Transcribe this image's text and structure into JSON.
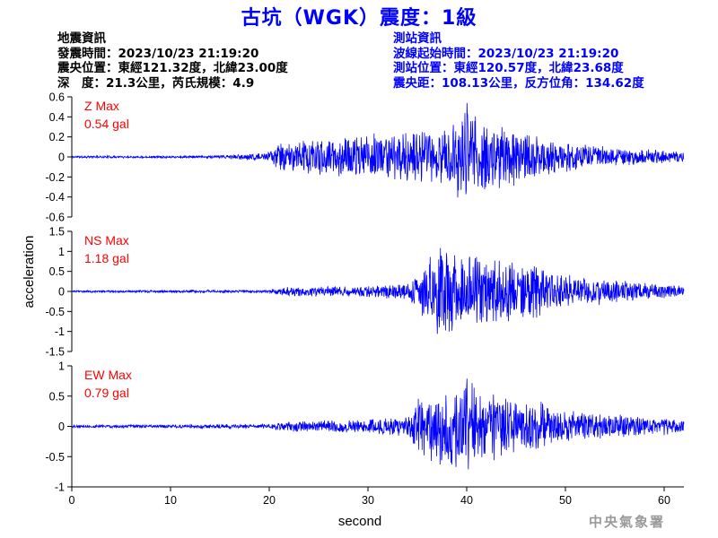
{
  "title": "古坑（WGK）震度：1級",
  "earthquake_info": {
    "heading": "地震資訊",
    "origin_time": "發震時間：2023/10/23 21:19:20",
    "epicenter": "震央位置：東經121.32度，北緯23.00度",
    "depth_magnitude": "深　度：21.3公里，芮氏規模：4.9"
  },
  "station_info": {
    "heading": "測站資訊",
    "wave_start_time": "波線起始時間：2023/10/23 21:19:20",
    "station_location": "測站位置：東經120.57度，北緯23.68度",
    "distance_azimuth": "震央距：108.13公里，反方位角：134.62度"
  },
  "credit": "中央氣象署",
  "colors": {
    "title": "#0000ff",
    "trace": "#0000ff",
    "max_label": "#ff0000",
    "station_text": "#0000ff"
  },
  "chart_data": {
    "type": "line",
    "xlabel": "second",
    "ylabel": "acceleration",
    "xlim": [
      0,
      62
    ],
    "x_ticks": [
      0,
      10,
      20,
      30,
      40,
      50,
      60
    ],
    "grid": false,
    "panels": [
      {
        "component": "Z",
        "max_label": "Z Max",
        "max_value": "0.54 gal",
        "ylim": [
          -0.6,
          0.6
        ],
        "y_ticks": [
          -0.6,
          -0.4,
          -0.2,
          0,
          0.2,
          0.4,
          0.6
        ],
        "y_tick_labels": [
          "-0.6",
          "-0.4",
          "-0.2",
          "0",
          "0.2",
          "0.4",
          "0.6"
        ],
        "envelope": [
          [
            0,
            0.012
          ],
          [
            14,
            0.015
          ],
          [
            17,
            0.03
          ],
          [
            20,
            0.05
          ],
          [
            21,
            0.15
          ],
          [
            26,
            0.2
          ],
          [
            30,
            0.24
          ],
          [
            34,
            0.26
          ],
          [
            36,
            0.3
          ],
          [
            38,
            0.35
          ],
          [
            40,
            0.54
          ],
          [
            42,
            0.38
          ],
          [
            46,
            0.28
          ],
          [
            50,
            0.16
          ],
          [
            55,
            0.1
          ],
          [
            62,
            0.06
          ]
        ],
        "seed": 11
      },
      {
        "component": "NS",
        "max_label": "NS Max",
        "max_value": "1.18 gal",
        "ylim": [
          -1.5,
          1.5
        ],
        "y_ticks": [
          -1.5,
          -1,
          -0.5,
          0,
          0.5,
          1,
          1.5
        ],
        "y_tick_labels": [
          "-1.5",
          "-1",
          "-0.5",
          "0",
          "0.5",
          "1",
          "1.5"
        ],
        "envelope": [
          [
            0,
            0.03
          ],
          [
            20,
            0.04
          ],
          [
            21,
            0.12
          ],
          [
            30,
            0.15
          ],
          [
            34,
            0.22
          ],
          [
            35,
            0.5
          ],
          [
            37,
            1.18
          ],
          [
            40,
            1.0
          ],
          [
            44,
            0.9
          ],
          [
            47,
            0.75
          ],
          [
            50,
            0.45
          ],
          [
            55,
            0.3
          ],
          [
            62,
            0.15
          ]
        ],
        "seed": 23
      },
      {
        "component": "EW",
        "max_label": "EW Max",
        "max_value": "0.79 gal",
        "ylim": [
          -1,
          1
        ],
        "y_ticks": [
          -1,
          -0.5,
          0,
          0.5,
          1
        ],
        "y_tick_labels": [
          "-1",
          "-0.5",
          "0",
          "0.5",
          "1"
        ],
        "envelope": [
          [
            0,
            0.025
          ],
          [
            20,
            0.04
          ],
          [
            21,
            0.1
          ],
          [
            30,
            0.12
          ],
          [
            34,
            0.18
          ],
          [
            35,
            0.5
          ],
          [
            37,
            0.7
          ],
          [
            40,
            0.79
          ],
          [
            43,
            0.6
          ],
          [
            46,
            0.5
          ],
          [
            50,
            0.3
          ],
          [
            55,
            0.2
          ],
          [
            62,
            0.14
          ]
        ],
        "seed": 37
      }
    ]
  }
}
